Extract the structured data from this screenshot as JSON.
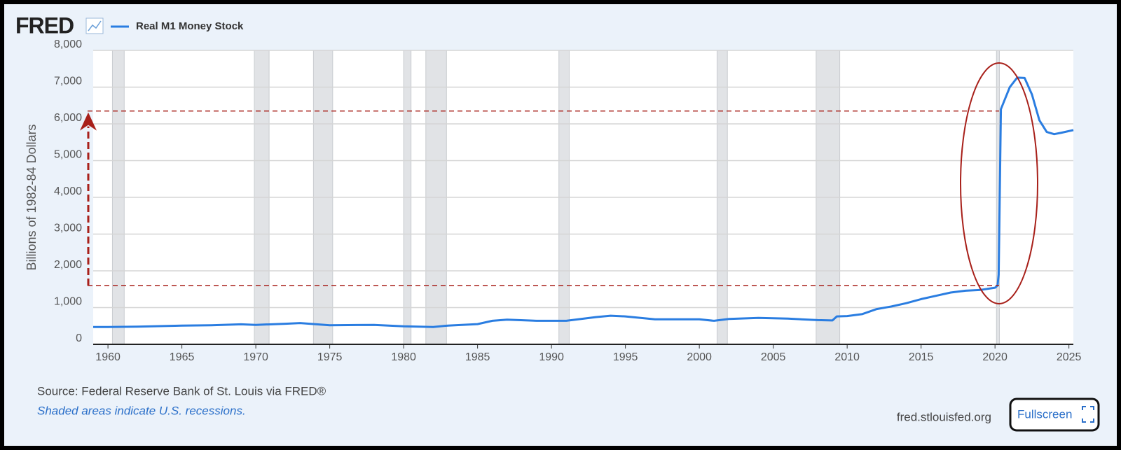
{
  "chart_data": {
    "type": "line",
    "logo": "FRED",
    "y_axis_label": "Billions of 1982-84 Dollars",
    "source": "Source: Federal Reserve Bank of St. Louis via FRED®",
    "note": "Shaded areas indicate U.S. recessions.",
    "site": "fred.stlouisfed.org",
    "button": "Fullscreen",
    "x": [
      1959,
      1960,
      1962,
      1965,
      1967,
      1969,
      1970,
      1972,
      1973,
      1975,
      1978,
      1980,
      1982,
      1983,
      1985,
      1986,
      1987,
      1989,
      1991,
      1993,
      1994,
      1995,
      1997,
      2000,
      2001,
      2002,
      2004,
      2006,
      2008,
      2009,
      2009.3,
      2010,
      2011,
      2012,
      2013,
      2014,
      2015,
      2016,
      2017,
      2018,
      2019,
      2020,
      2020.17,
      2020.25,
      2020.4,
      2020.6,
      2021,
      2021.5,
      2022,
      2022.5,
      2023,
      2023.5,
      2024,
      2024.5,
      2025.3
    ],
    "series": [
      {
        "name": "Real M1 Money Stock",
        "color": "#2a7de1",
        "values": [
          470,
          470,
          480,
          510,
          520,
          545,
          530,
          560,
          580,
          520,
          530,
          490,
          470,
          510,
          550,
          640,
          670,
          640,
          640,
          740,
          780,
          760,
          680,
          680,
          640,
          690,
          720,
          700,
          660,
          650,
          760,
          770,
          820,
          960,
          1030,
          1120,
          1230,
          1320,
          1410,
          1460,
          1480,
          1540,
          1600,
          1900,
          6400,
          6600,
          7000,
          7260,
          7250,
          6800,
          6100,
          5780,
          5720,
          5760,
          5830
        ]
      }
    ],
    "recessions": [
      [
        1960.3,
        1961.1
      ],
      [
        1969.9,
        1970.9
      ],
      [
        1973.9,
        1975.2
      ],
      [
        1980.0,
        1980.5
      ],
      [
        1981.5,
        1982.9
      ],
      [
        1990.5,
        1991.2
      ],
      [
        2001.2,
        2001.9
      ],
      [
        2007.9,
        2009.5
      ],
      [
        2020.1,
        2020.3
      ]
    ],
    "reference_lines": [
      1600,
      6350
    ],
    "xlim": [
      1959,
      2025.3
    ],
    "ylim": [
      0,
      8000
    ],
    "xticks": [
      1960,
      1965,
      1970,
      1975,
      1980,
      1985,
      1990,
      1995,
      2000,
      2005,
      2010,
      2015,
      2020,
      2025
    ],
    "yticks": [
      0,
      {
        "value": 1000,
        "label": "1,000"
      },
      {
        "value": 2000,
        "label": "2,000"
      },
      {
        "value": 3000,
        "label": "3,000"
      },
      {
        "value": 4000,
        "label": "4,000"
      },
      {
        "value": 5000,
        "label": "5,000"
      },
      {
        "value": 6000,
        "label": "6,000"
      },
      {
        "value": 7000,
        "label": "7,000"
      },
      {
        "value": 8000,
        "label": "8,000"
      }
    ],
    "grid": true
  }
}
